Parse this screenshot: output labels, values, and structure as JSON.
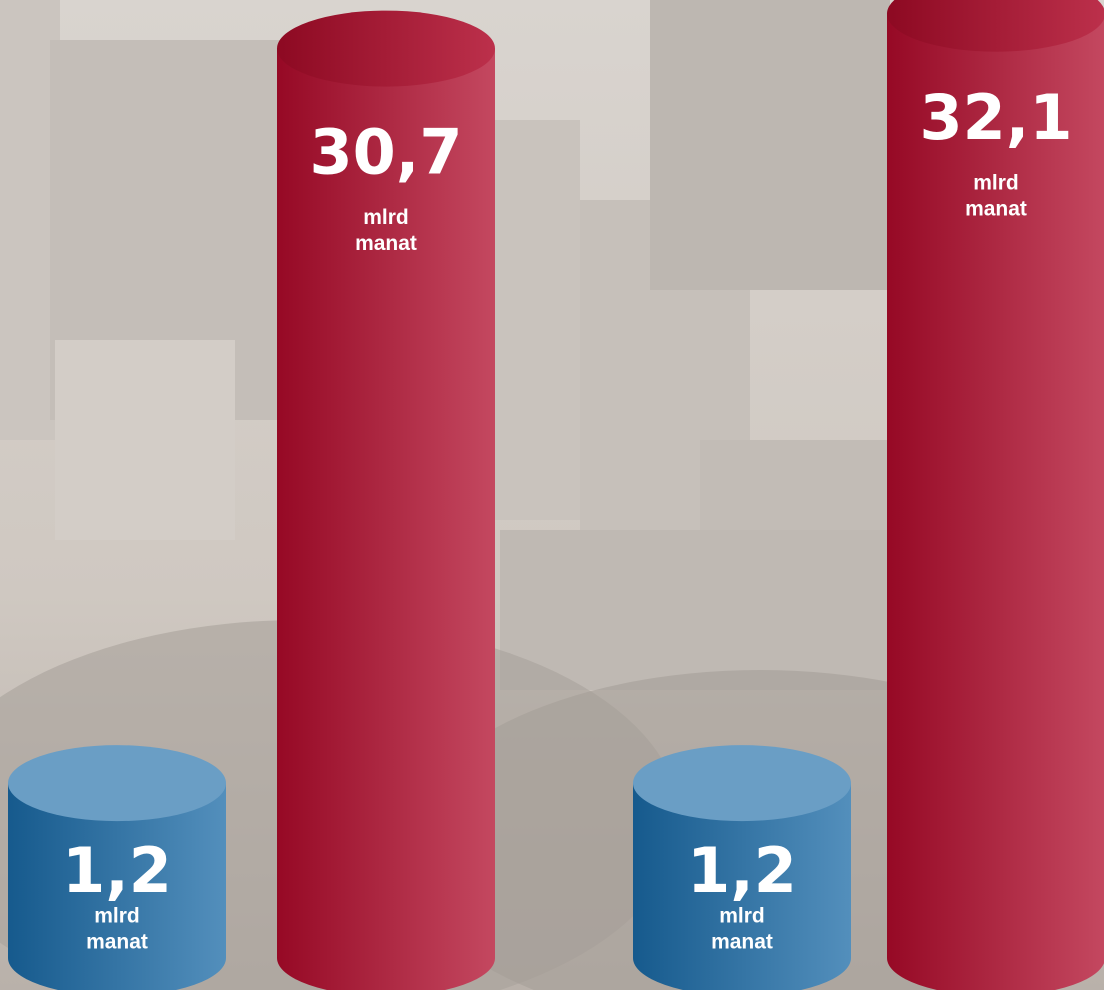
{
  "chart_data": {
    "type": "cylinder",
    "values": [
      1.2,
      30.7,
      1.2,
      32.1
    ],
    "value_labels": [
      "1,2",
      "30,7",
      "1,2",
      "32,1"
    ],
    "unit_lines": [
      "mlrd",
      "manat"
    ],
    "colors": [
      "#1a6aa6",
      "#b00b2b",
      "#1a6aa6",
      "#b00b2b"
    ]
  }
}
